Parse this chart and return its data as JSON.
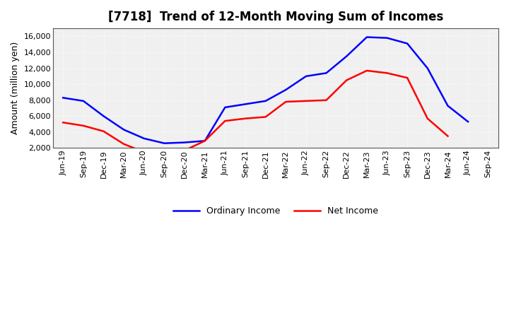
{
  "title": "[7718]  Trend of 12-Month Moving Sum of Incomes",
  "ylabel": "Amount (million yen)",
  "background_color": "#ffffff",
  "plot_bg_color": "#f0f0f0",
  "grid_color": "#ffffff",
  "x_labels": [
    "Jun-19",
    "Sep-19",
    "Dec-19",
    "Mar-20",
    "Jun-20",
    "Sep-20",
    "Dec-20",
    "Mar-21",
    "Jun-21",
    "Sep-21",
    "Dec-21",
    "Mar-22",
    "Jun-22",
    "Sep-22",
    "Dec-22",
    "Mar-23",
    "Jun-23",
    "Sep-23",
    "Dec-23",
    "Mar-24",
    "Jun-24",
    "Sep-24"
  ],
  "ordinary_income": [
    8300,
    7900,
    6000,
    4300,
    3200,
    2600,
    2700,
    2900,
    7100,
    7500,
    7900,
    9300,
    11000,
    11400,
    13500,
    15900,
    15800,
    15100,
    12000,
    7300,
    5300,
    null
  ],
  "net_income": [
    5200,
    4800,
    4100,
    2500,
    1500,
    1350,
    1700,
    2900,
    5400,
    5700,
    5900,
    7800,
    7900,
    8000,
    10500,
    11700,
    11400,
    10800,
    5700,
    3500,
    null,
    null
  ],
  "ordinary_color": "#0000ff",
  "net_color": "#ff0000",
  "line_width": 1.8,
  "ylim": [
    2000,
    17000
  ],
  "yticks": [
    2000,
    4000,
    6000,
    8000,
    10000,
    12000,
    14000,
    16000
  ],
  "legend_labels": [
    "Ordinary Income",
    "Net Income"
  ],
  "title_fontsize": 12,
  "ylabel_fontsize": 9,
  "tick_fontsize": 8
}
